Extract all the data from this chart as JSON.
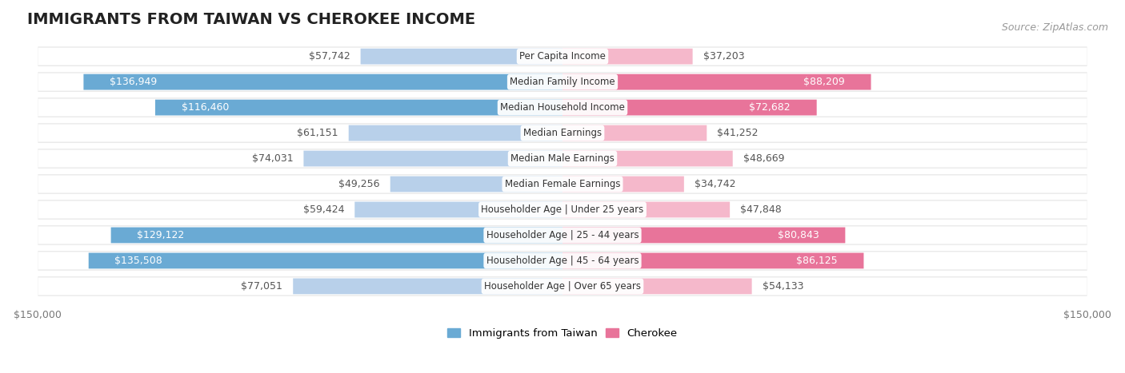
{
  "title": "IMMIGRANTS FROM TAIWAN VS CHEROKEE INCOME",
  "source": "Source: ZipAtlas.com",
  "categories": [
    "Per Capita Income",
    "Median Family Income",
    "Median Household Income",
    "Median Earnings",
    "Median Male Earnings",
    "Median Female Earnings",
    "Householder Age | Under 25 years",
    "Householder Age | 25 - 44 years",
    "Householder Age | 45 - 64 years",
    "Householder Age | Over 65 years"
  ],
  "taiwan_values": [
    57742,
    136949,
    116460,
    61151,
    74031,
    49256,
    59424,
    129122,
    135508,
    77051
  ],
  "cherokee_values": [
    37203,
    88209,
    72682,
    41252,
    48669,
    34742,
    47848,
    80843,
    86125,
    54133
  ],
  "taiwan_labels": [
    "$57,742",
    "$136,949",
    "$116,460",
    "$61,151",
    "$74,031",
    "$49,256",
    "$59,424",
    "$129,122",
    "$135,508",
    "$77,051"
  ],
  "cherokee_labels": [
    "$37,203",
    "$88,209",
    "$72,682",
    "$41,252",
    "$48,669",
    "$34,742",
    "$47,848",
    "$80,843",
    "$86,125",
    "$54,133"
  ],
  "taiwan_color_light": "#b8d0ea",
  "taiwan_color_dark": "#6aaad4",
  "cherokee_color_light": "#f5b8cb",
  "cherokee_color_dark": "#e8749a",
  "max_value": 150000,
  "x_tick_left": "$150,000",
  "x_tick_right": "$150,000",
  "legend_taiwan": "Immigrants from Taiwan",
  "legend_cherokee": "Cherokee",
  "bar_height": 0.62,
  "row_bg_color": "#e8e8e8",
  "title_fontsize": 14,
  "source_fontsize": 9,
  "label_fontsize": 9,
  "cat_fontsize": 8.5,
  "tw_dark_threshold": 90000,
  "ch_dark_threshold": 60000
}
